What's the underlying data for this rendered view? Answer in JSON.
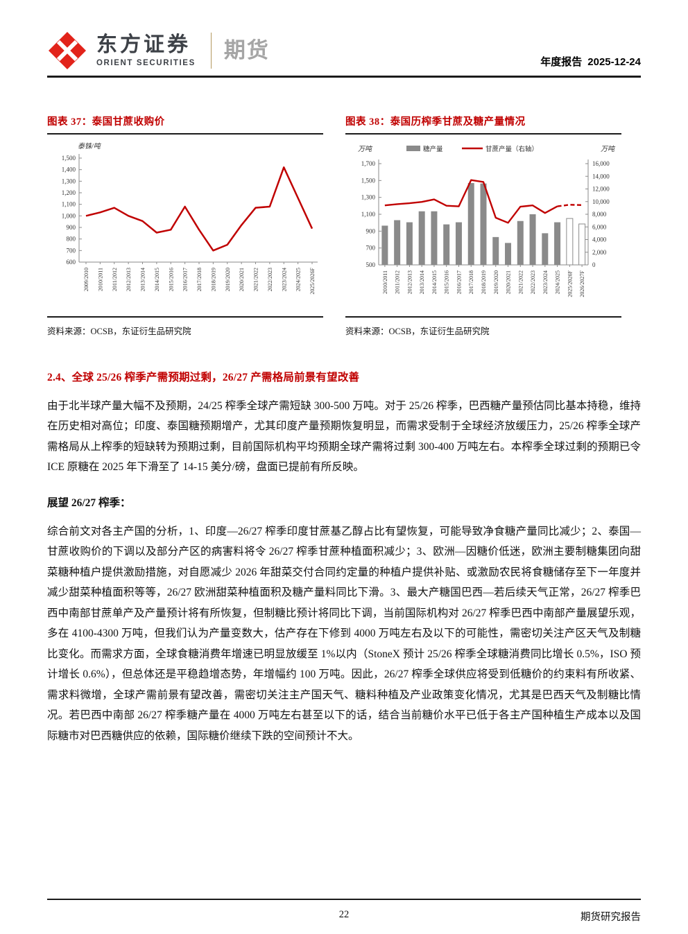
{
  "header": {
    "brand_cn": "东方证券",
    "brand_en": "ORIENT SECURITIES",
    "division": "期货",
    "report_type": "年度报告",
    "report_date": "2025-12-24"
  },
  "figures": [
    {
      "title": "图表 37：泰国甘蔗收购价",
      "source": "资料来源：OCSB，东证衍生品研究院"
    },
    {
      "title": "图表 38：泰国历榨季甘蔗及糖产量情况",
      "source": "资料来源：OCSB，东证衍生品研究院"
    }
  ],
  "chart_data": [
    {
      "type": "line",
      "title": "图表 37：泰国甘蔗收购价",
      "unit_left": "泰铢/吨",
      "categories": [
        "2009/2010",
        "2010/2011",
        "2011/2012",
        "2012/2013",
        "2013/2014",
        "2014/2015",
        "2015/2016",
        "2016/2017",
        "2017/2018",
        "2018/2019",
        "2019/2020",
        "2020/2021",
        "2021/2022",
        "2022/2023",
        "2023/2024",
        "2024/2025",
        "2025/2026F"
      ],
      "values": [
        1000,
        1030,
        1070,
        1000,
        955,
        855,
        880,
        1080,
        880,
        700,
        750,
        920,
        1070,
        1080,
        1420,
        1155,
        890
      ],
      "ylim": [
        600,
        1500
      ],
      "ytick_step": 100,
      "grid": false,
      "line_color": "#c00000"
    },
    {
      "type": "combo_bar_line",
      "title": "图表 38：泰国历榨季甘蔗及糖产量情况",
      "unit_left": "万吨",
      "unit_right": "万吨",
      "legend_position": "top",
      "grid": false,
      "categories": [
        "2010/2011",
        "2011/2012",
        "2012/2013",
        "2013/2014",
        "2014/2015",
        "2015/2016",
        "2016/2017",
        "2017/2018",
        "2018/2019",
        "2019/2020",
        "2020/2021",
        "2021/2022",
        "2022/2023",
        "2023/2024",
        "2024/2025",
        "2025/2026F",
        "2026/2027F"
      ],
      "series": [
        {
          "name": "糖产量",
          "type": "bar",
          "axis": "left",
          "values": [
            965,
            1030,
            1005,
            1135,
            1135,
            980,
            1005,
            1470,
            1465,
            830,
            760,
            1020,
            1100,
            875,
            1005,
            1050,
            985
          ],
          "bar_color": "#8a8a8a",
          "forecast_from_index": 15
        },
        {
          "name": "甘蔗产量（右轴）",
          "type": "line",
          "axis": "right",
          "values": [
            9400,
            9600,
            9750,
            9950,
            10350,
            9350,
            9250,
            13400,
            13100,
            7450,
            6650,
            9200,
            9400,
            8200,
            9250,
            9500,
            9450
          ],
          "line_color": "#c00000",
          "dashed_from_index": 14
        }
      ],
      "ylim_left": [
        500,
        1700
      ],
      "ytick_step_left": 200,
      "ylim_right": [
        0,
        16000
      ],
      "ytick_step_right": 2000
    }
  ],
  "section": {
    "heading": "2.4、全球 25/26 榨季产需预期过剩，26/27 产需格局前景有望改善",
    "paragraph_1": "由于北半球产量大幅不及预期，24/25 榨季全球产需短缺 300-500 万吨。对于 25/26 榨季，巴西糖产量预估同比基本持稳，维持在历史相对高位；印度、泰国糖预期增产，尤其印度产量预期恢复明显，而需求受制于全球经济放缓压力，25/26 榨季全球产需格局从上榨季的短缺转为预期过剩，目前国际机构平均预期全球产需将过剩 300-400 万吨左右。本榨季全球过剩的预期已令 ICE 原糖在 2025 年下滑至了 14-15 美分/磅，盘面已提前有所反映。",
    "subheading": "展望 26/27 榨季：",
    "paragraph_2": "综合前文对各主产国的分析，1、印度—26/27 榨季印度甘蔗基乙醇占比有望恢复，可能导致净食糖产量同比减少；2、泰国—甘蔗收购价的下调以及部分产区的病害料将令 26/27 榨季甘蔗种植面积减少；3、欧洲—因糖价低迷，欧洲主要制糖集团向甜菜糖种植户提供激励措施，对自愿减少 2026 年甜菜交付合同约定量的种植户提供补贴、或激励农民将食糖储存至下一年度并减少甜菜种植面积等等，26/27 欧洲甜菜种植面积及糖产量料同比下滑。3、最大产糖国巴西—若后续天气正常，26/27 榨季巴西中南部甘蔗单产及产量预计将有所恢复，但制糖比预计将同比下调，当前国际机构对 26/27 榨季巴西中南部产量展望乐观，多在 4100-4300 万吨，但我们认为产量变数大，估产存在下修到 4000 万吨左右及以下的可能性，需密切关注产区天气及制糖比变化。而需求方面，全球食糖消费年增速已明显放缓至 1%以内（StoneX 预计 25/26 榨季全球糖消费同比增长 0.5%，ISO 预计增长 0.6%），但总体还是平稳趋增态势，年增幅约 100 万吨。因此，26/27 榨季全球供应将受到低糖价的约束料有所收紧、需求料微增，全球产需前景有望改善，需密切关注主产国天气、糖料种植及产业政策变化情况，尤其是巴西天气及制糖比情况。若巴西中南部 26/27 榨季糖产量在 4000 万吨左右甚至以下的话，结合当前糖价水平已低于各主产国种植生产成本以及国际糖市对巴西糖供应的依赖，国际糖价继续下跌的空间预计不大。"
  },
  "footer": {
    "page_number": "22",
    "label": "期货研究报告"
  },
  "colors": {
    "accent_red": "#c00000",
    "logo_red": "#e2231a",
    "bar_gray": "#8a8a8a",
    "rule_dark": "#1a1a1a",
    "divider_gold": "#b4995f"
  }
}
